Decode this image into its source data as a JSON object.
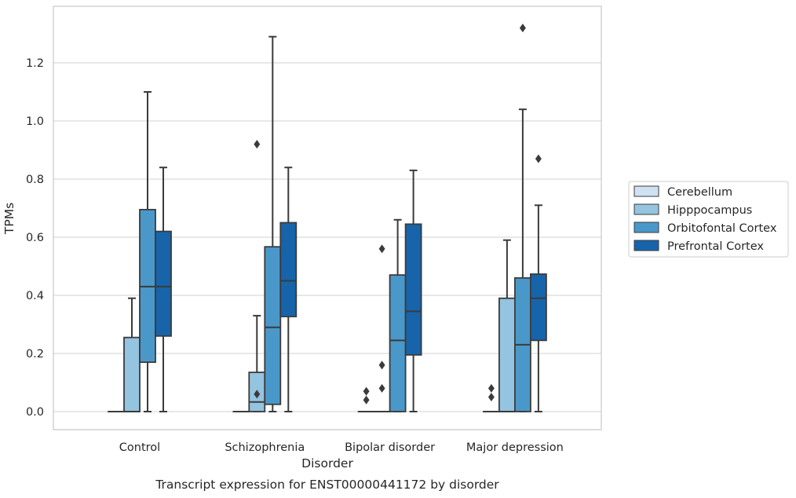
{
  "chart_data": {
    "type": "box",
    "title": "",
    "caption": "Transcript expression for ENST00000441172 by disorder",
    "xlabel": "Disorder",
    "ylabel": "TPMs",
    "ylim": [
      -0.065,
      1.395
    ],
    "yticks": [
      0.0,
      0.2,
      0.4,
      0.6,
      0.8,
      1.0,
      1.2
    ],
    "grid": "horizontal",
    "legend_position": "right",
    "categories": [
      "Control",
      "Schizophrenia",
      "Bipolar disorder",
      "Major depression"
    ],
    "series": [
      {
        "name": "Cerebellum",
        "color": "#d0e1f2",
        "boxes": [
          {
            "min": 0,
            "q1": 0,
            "median": 0,
            "q3": 0,
            "max": 0,
            "outliers": []
          },
          {
            "min": 0,
            "q1": 0,
            "median": 0,
            "q3": 0,
            "max": 0,
            "outliers": []
          },
          {
            "min": 0,
            "q1": 0,
            "median": 0,
            "q3": 0,
            "max": 0,
            "outliers": [
              0.04,
              0.07
            ]
          },
          {
            "min": 0,
            "q1": 0,
            "median": 0,
            "q3": 0,
            "max": 0,
            "outliers": [
              0.05,
              0.08
            ]
          }
        ]
      },
      {
        "name": "Hipppocampus",
        "color": "#94c4df",
        "boxes": [
          {
            "min": 0,
            "q1": 0,
            "median": 0,
            "q3": 0.255,
            "max": 0.39,
            "outliers": []
          },
          {
            "min": 0,
            "q1": 0,
            "median": 0.033,
            "q3": 0.135,
            "max": 0.33,
            "outliers": [
              0.06,
              0.92
            ]
          },
          {
            "min": 0,
            "q1": 0,
            "median": 0,
            "q3": 0,
            "max": 0,
            "outliers": [
              0.08,
              0.16,
              0.56
            ]
          },
          {
            "min": 0,
            "q1": 0,
            "median": 0,
            "q3": 0.39,
            "max": 0.59,
            "outliers": []
          }
        ]
      },
      {
        "name": "Orbitofontal Cortex",
        "color": "#4a98c9",
        "boxes": [
          {
            "min": 0,
            "q1": 0.17,
            "median": 0.43,
            "q3": 0.695,
            "max": 1.1,
            "outliers": []
          },
          {
            "min": 0,
            "q1": 0.025,
            "median": 0.29,
            "q3": 0.567,
            "max": 1.29,
            "outliers": []
          },
          {
            "min": 0,
            "q1": 0,
            "median": 0.245,
            "q3": 0.47,
            "max": 0.66,
            "outliers": []
          },
          {
            "min": 0,
            "q1": 0,
            "median": 0.23,
            "q3": 0.46,
            "max": 1.04,
            "outliers": [
              1.32
            ]
          }
        ]
      },
      {
        "name": "Prefrontal Cortex",
        "color": "#1764ab",
        "boxes": [
          {
            "min": 0,
            "q1": 0.26,
            "median": 0.43,
            "q3": 0.62,
            "max": 0.84,
            "outliers": []
          },
          {
            "min": 0,
            "q1": 0.327,
            "median": 0.45,
            "q3": 0.65,
            "max": 0.84,
            "outliers": []
          },
          {
            "min": 0,
            "q1": 0.195,
            "median": 0.345,
            "q3": 0.645,
            "max": 0.83,
            "outliers": []
          },
          {
            "min": 0,
            "q1": 0.245,
            "median": 0.39,
            "q3": 0.473,
            "max": 0.71,
            "outliers": [
              0.87
            ]
          }
        ]
      }
    ]
  }
}
